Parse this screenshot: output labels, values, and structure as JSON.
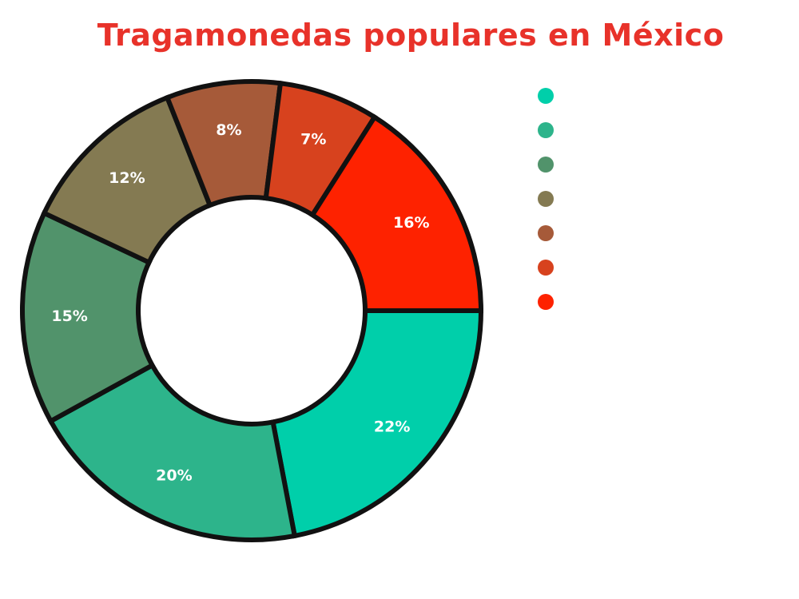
{
  "chart_data": {
    "type": "donut",
    "title": "Tragamonedas populares en México",
    "title_color": "#e8322a",
    "values": [
      22,
      20,
      15,
      12,
      8,
      7,
      16
    ],
    "labels": [
      "22%",
      "20%",
      "15%",
      "12%",
      "8%",
      "7%",
      "16%"
    ],
    "colors": [
      "#00cfaa",
      "#2db48b",
      "#51936b",
      "#847a52",
      "#a65a39",
      "#d7421e",
      "#fe2200"
    ],
    "legend": {
      "placement": "right",
      "entries": [
        {
          "label": "",
          "color": "#00cfaa"
        },
        {
          "label": "",
          "color": "#2db48b"
        },
        {
          "label": "",
          "color": "#51936b"
        },
        {
          "label": "",
          "color": "#847a52"
        },
        {
          "label": "",
          "color": "#a65a39"
        },
        {
          "label": "",
          "color": "#d7421e"
        },
        {
          "label": "",
          "color": "#fe2200"
        }
      ]
    },
    "start_angle": "3 o'clock",
    "direction": "clockwise"
  }
}
